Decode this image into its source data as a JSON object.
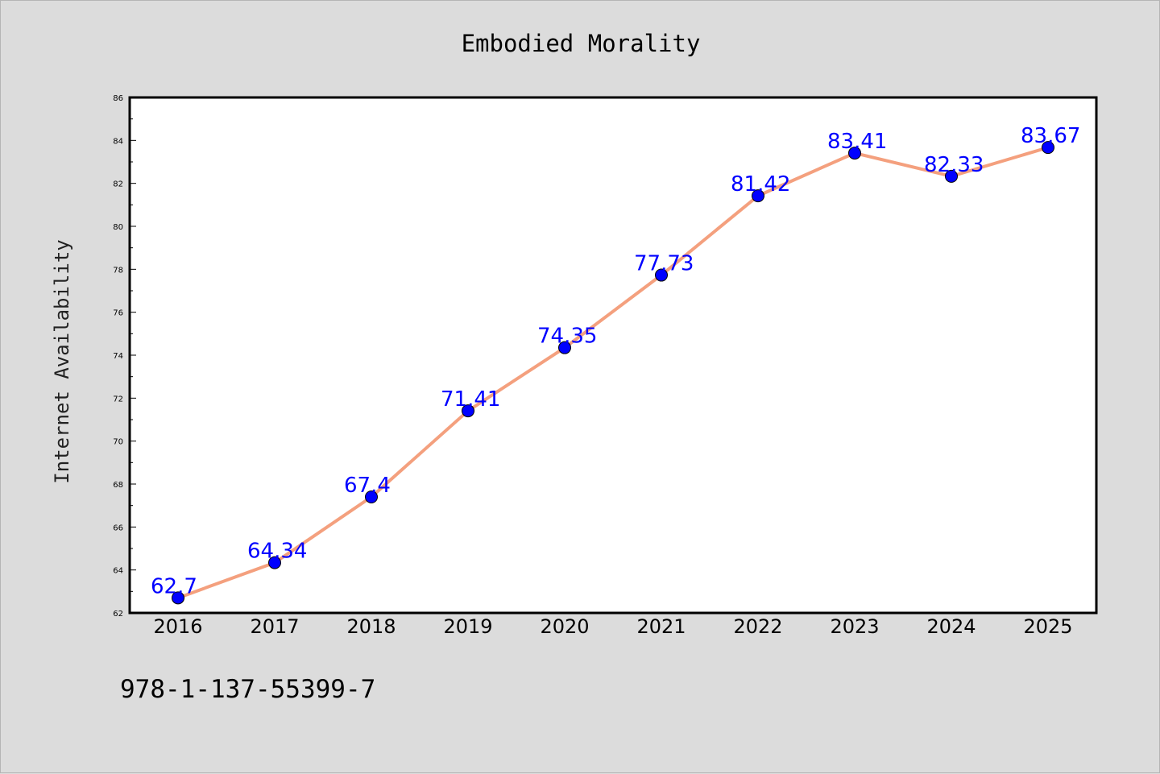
{
  "chart_data": {
    "type": "line",
    "title": "Embodied Morality",
    "xlabel": "",
    "ylabel": "Internet Availability",
    "categories": [
      "2016",
      "2017",
      "2018",
      "2019",
      "2020",
      "2021",
      "2022",
      "2023",
      "2024",
      "2025"
    ],
    "series": [
      {
        "values": [
          62.7,
          64.34,
          67.4,
          71.41,
          74.35,
          77.73,
          81.42,
          83.41,
          82.33,
          83.67
        ],
        "data_labels": [
          "62.7",
          "64.34",
          "67.4",
          "71.41",
          "74.35",
          "77.73",
          "81.42",
          "83.41",
          "82.33",
          "83.67"
        ],
        "line_color": "#f4a07e",
        "marker_color": "#0000ff"
      }
    ],
    "ylim": [
      62,
      86
    ],
    "yticks": [
      "62",
      "64",
      "66",
      "68",
      "70",
      "72",
      "74",
      "76",
      "78",
      "80",
      "82",
      "84",
      "86"
    ],
    "grid": false,
    "legend": "none"
  },
  "footer": {
    "text": "978-1-137-55399-7"
  },
  "colors": {
    "background": "#dcdcdc",
    "plot_background": "#ffffff",
    "line": "#f4a07e",
    "marker": "#0000ff",
    "data_label": "#0000ff"
  }
}
